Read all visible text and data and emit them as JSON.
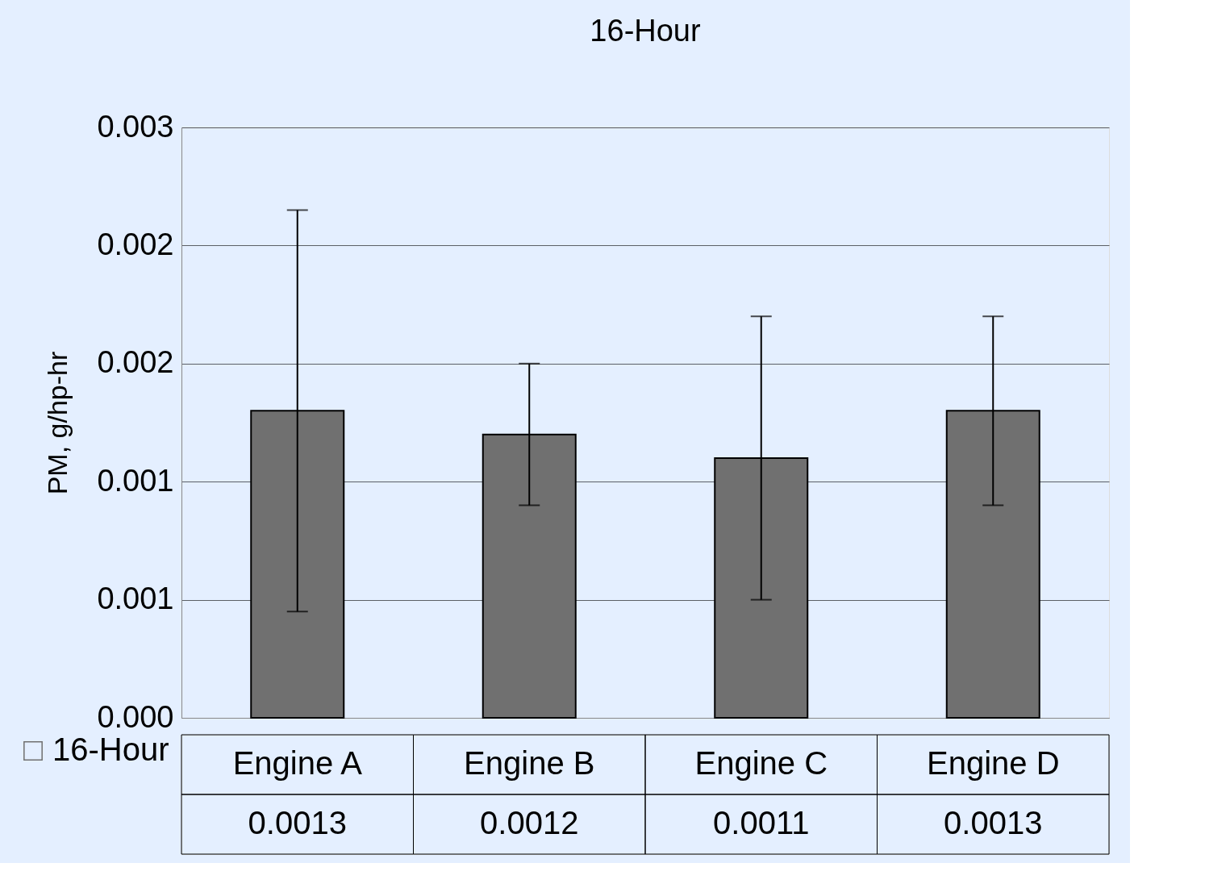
{
  "chart_data": {
    "type": "bar",
    "title": "16-Hour",
    "ylabel": "PM, g/hp-hr",
    "categories": [
      "Engine A",
      "Engine B",
      "Engine C",
      "Engine D"
    ],
    "series": [
      {
        "name": "16-Hour",
        "color": "#707070",
        "values": [
          0.0013,
          0.0012,
          0.0011,
          0.0013
        ],
        "errors": [
          0.00085,
          0.0003,
          0.0006,
          0.0004
        ]
      }
    ],
    "ylim": [
      0,
      0.0025
    ],
    "yticks": [
      {
        "value": 0,
        "label": "0.000"
      },
      {
        "value": 0.0005,
        "label": "0.001"
      },
      {
        "value": 0.001,
        "label": "0.001"
      },
      {
        "value": 0.0015,
        "label": "0.002"
      },
      {
        "value": 0.002,
        "label": "0.002"
      },
      {
        "value": 0.0025,
        "label": "0.003"
      }
    ],
    "grid": "y",
    "data_labels": true,
    "legend": "bottom left"
  }
}
